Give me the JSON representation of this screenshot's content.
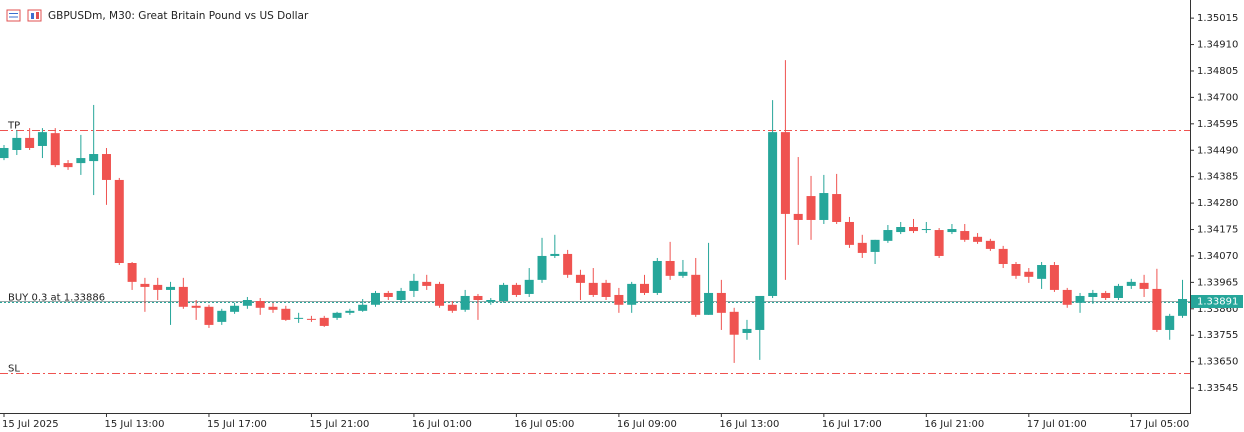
{
  "chart_data": {
    "type": "candlestick",
    "title": "GBPUSDm, M30:  Great Britain Pound vs US Dollar",
    "up_color": "#26a69a",
    "down_color": "#ef5350",
    "categories": [
      "15 Jul 2025",
      null,
      null,
      null,
      null,
      null,
      null,
      null,
      "15 Jul 13:00",
      null,
      null,
      null,
      null,
      null,
      null,
      null,
      "15 Jul 17:00",
      null,
      null,
      null,
      null,
      null,
      null,
      null,
      "15 Jul 21:00",
      null,
      null,
      null,
      null,
      null,
      null,
      null,
      "16 Jul 01:00",
      null,
      null,
      null,
      null,
      null,
      null,
      null,
      "16 Jul 05:00",
      null,
      null,
      null,
      null,
      null,
      null,
      null,
      "16 Jul 09:00",
      null,
      null,
      null,
      null,
      null,
      null,
      null,
      "16 Jul 13:00",
      null,
      null,
      null,
      null,
      null,
      null,
      null,
      "16 Jul 17:00",
      null,
      null,
      null,
      null,
      null,
      null,
      null,
      "16 Jul 21:00",
      null,
      null,
      null,
      null,
      null,
      null,
      null,
      "17 Jul 01:00",
      null,
      null,
      null,
      null,
      null,
      null,
      null,
      "17 Jul 05:00",
      null,
      null,
      null,
      null
    ],
    "open": [
      1.34459,
      1.34491,
      1.34539,
      1.34507,
      1.34558,
      1.34439,
      1.34439,
      1.34447,
      1.34475,
      1.34372,
      1.34042,
      1.33959,
      1.33955,
      1.33935,
      1.33947,
      1.33872,
      1.33868,
      1.33808,
      1.33848,
      1.33872,
      1.33891,
      1.33868,
      1.3386,
      1.3382,
      1.3382,
      1.33824,
      1.33824,
      1.33844,
      1.33852,
      1.33876,
      1.33923,
      1.33895,
      1.33931,
      1.33967,
      1.33959,
      1.33876,
      1.33856,
      1.33911,
      1.33888,
      1.33891,
      1.33955,
      1.33919,
      1.33975,
      1.3407,
      1.34078,
      1.33995,
      1.33963,
      1.33963,
      1.33915,
      1.33876,
      1.33959,
      1.33923,
      1.3405,
      1.33991,
      1.33995,
      1.33836,
      1.33923,
      1.33848,
      1.33764,
      1.33776,
      1.33911,
      1.34562,
      1.34237,
      1.34308,
      1.34213,
      1.34316,
      1.34205,
      1.34122,
      1.34086,
      1.3413,
      1.34165,
      1.34185,
      1.34173,
      1.34173,
      1.34165,
      1.34169,
      1.34146,
      1.3413,
      1.34098,
      1.34038,
      1.34007,
      1.33979,
      1.34034,
      1.33935,
      1.33884,
      1.33907,
      1.33923,
      1.33903,
      1.33951,
      1.33963,
      1.33939,
      1.33776,
      1.33832
    ],
    "high": [
      1.34511,
      1.3457,
      1.34578,
      1.34578,
      1.34578,
      1.34451,
      1.34551,
      1.3467,
      1.34499,
      1.3438,
      1.34046,
      1.33983,
      1.33983,
      1.33967,
      1.33983,
      1.33895,
      1.33876,
      1.3386,
      1.33884,
      1.33907,
      1.33903,
      1.33884,
      1.33872,
      1.33844,
      1.33832,
      1.33832,
      1.33848,
      1.3386,
      1.33899,
      1.33931,
      1.33931,
      1.33943,
      1.33999,
      1.33995,
      1.33967,
      1.33891,
      1.33935,
      1.33919,
      1.33903,
      1.33963,
      1.33963,
      1.34022,
      1.34142,
      1.34154,
      1.34094,
      1.34015,
      1.34022,
      1.33975,
      1.33943,
      1.33967,
      1.33995,
      1.34062,
      1.34126,
      1.34054,
      1.34062,
      1.34122,
      1.33975,
      1.33864,
      1.33816,
      1.33911,
      1.34689,
      1.34848,
      1.34463,
      1.34388,
      1.34392,
      1.34396,
      1.34225,
      1.34154,
      1.34134,
      1.34193,
      1.34205,
      1.34217,
      1.34205,
      1.34181,
      1.34197,
      1.34197,
      1.34161,
      1.34138,
      1.3411,
      1.34046,
      1.34022,
      1.34046,
      1.34046,
      1.33943,
      1.33923,
      1.33935,
      1.33931,
      1.33959,
      1.33979,
      1.33995,
      1.34019,
      1.3384,
      1.33975
    ],
    "low": [
      1.34451,
      1.34471,
      1.34491,
      1.34459,
      1.34423,
      1.34412,
      1.34392,
      1.34312,
      1.34273,
      1.34034,
      1.33935,
      1.33848,
      1.33895,
      1.33796,
      1.3386,
      1.33816,
      1.33784,
      1.33796,
      1.3384,
      1.3386,
      1.33836,
      1.33844,
      1.33812,
      1.33804,
      1.33808,
      1.33788,
      1.33816,
      1.33836,
      1.33848,
      1.33868,
      1.33895,
      1.33884,
      1.33907,
      1.33935,
      1.33864,
      1.33844,
      1.33848,
      1.33816,
      1.33876,
      1.33884,
      1.33907,
      1.33907,
      1.33963,
      1.34062,
      1.33983,
      1.33895,
      1.33907,
      1.33895,
      1.33844,
      1.33844,
      1.33915,
      1.33915,
      1.33975,
      1.33983,
      1.33828,
      1.33836,
      1.33776,
      1.33645,
      1.33737,
      1.33657,
      1.33903,
      1.33975,
      1.34114,
      1.34134,
      1.34197,
      1.34197,
      1.34102,
      1.34062,
      1.34038,
      1.34122,
      1.34157,
      1.34161,
      1.34161,
      1.34062,
      1.34157,
      1.34126,
      1.34118,
      1.3409,
      1.34022,
      1.33979,
      1.33963,
      1.33939,
      1.33927,
      1.33864,
      1.33844,
      1.3388,
      1.33895,
      1.33895,
      1.33939,
      1.33907,
      1.33768,
      1.33737,
      1.33824
    ],
    "close": [
      1.34499,
      1.34539,
      1.34499,
      1.34562,
      1.34431,
      1.34423,
      1.34459,
      1.34475,
      1.34372,
      1.34042,
      1.33967,
      1.33947,
      1.33935,
      1.33947,
      1.33868,
      1.33864,
      1.33796,
      1.33852,
      1.33872,
      1.33895,
      1.33864,
      1.33856,
      1.33816,
      1.33824,
      1.33816,
      1.33792,
      1.33844,
      1.33852,
      1.33876,
      1.33923,
      1.33907,
      1.33931,
      1.33971,
      1.33951,
      1.33872,
      1.33852,
      1.33911,
      1.33895,
      1.33895,
      1.33955,
      1.33915,
      1.33975,
      1.3407,
      1.34078,
      1.33995,
      1.33963,
      1.33915,
      1.33907,
      1.33876,
      1.33959,
      1.33923,
      1.3405,
      1.33991,
      1.34007,
      1.33836,
      1.33923,
      1.33844,
      1.33757,
      1.3378,
      1.33911,
      1.34562,
      1.34237,
      1.34213,
      1.34213,
      1.3432,
      1.34205,
      1.34114,
      1.34082,
      1.34134,
      1.34173,
      1.34185,
      1.34169,
      1.34177,
      1.3407,
      1.34177,
      1.34134,
      1.34126,
      1.34098,
      1.34038,
      1.33991,
      1.33987,
      1.34034,
      1.33935,
      1.33876,
      1.33911,
      1.33923,
      1.33903,
      1.33951,
      1.33967,
      1.33939,
      1.33776,
      1.33832,
      1.33899
    ],
    "ylim": [
      1.33446,
      1.35087
    ],
    "yticks": [
      1.35015,
      {
        "value": 1.3491,
        "label": "1.34910"
      },
      1.34805,
      {
        "value": 1.347,
        "label": "1.34700"
      },
      1.34595,
      {
        "value": 1.3449,
        "label": "1.34490"
      },
      1.34385,
      {
        "value": 1.3428,
        "label": "1.34280"
      },
      1.34175,
      {
        "value": 1.3407,
        "label": "1.34070"
      },
      1.33965,
      {
        "value": 1.3386,
        "label": "1.33860"
      },
      1.33755,
      {
        "value": 1.3365,
        "label": "1.33650"
      },
      1.33545
    ],
    "levels": [
      {
        "label": "TP",
        "value": 1.3457,
        "color": "#ef5350"
      },
      {
        "label": "BUY 0.3 at 1.33886",
        "value": 1.33886,
        "color": "#26a69a"
      },
      {
        "label": "SL",
        "value": 1.33606,
        "color": "#ef5350"
      }
    ],
    "current_price": 1.33891,
    "current_price_color": "#26a69a"
  }
}
